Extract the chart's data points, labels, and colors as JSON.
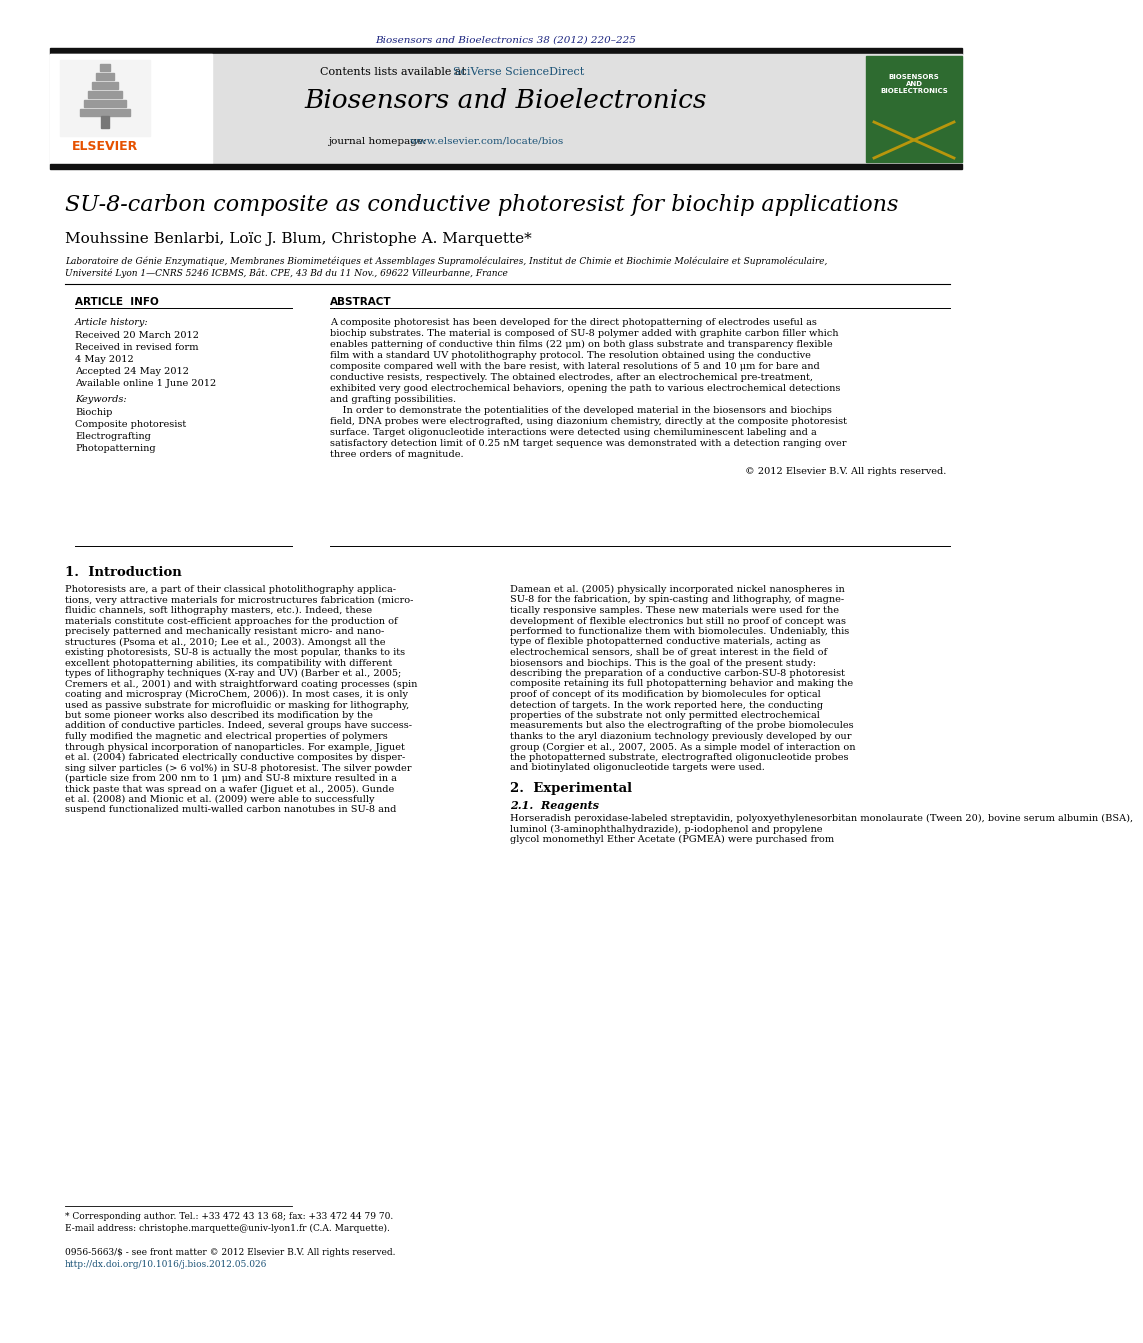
{
  "journal_citation": "Biosensors and Bioelectronics 38 (2012) 220–225",
  "contents_text": "Contents lists available at ",
  "sciverse_text": "SciVerse ScienceDirect",
  "journal_name": "Biosensors and Bioelectronics",
  "homepage_label": "journal homepage: ",
  "homepage_url": "www.elsevier.com/locate/bios",
  "paper_title": "SU-8-carbon composite as conductive photoresist for biochip applications",
  "authors": "Mouhssine Benlarbi, Loïc J. Blum, Christophe A. Marquette*",
  "affiliation_line1": "Laboratoire de Génie Enzymatique, Membranes Biomimetéiques et Assemblages Supramoléculaires, Institut de Chimie et Biochimie Moléculaire et Supramoléculaire,",
  "affiliation_line2": "Université Lyon 1—CNRS 5246 ICBMS, Bât. CPE, 43 Bd du 11 Nov., 69622 Villeurbanne, France",
  "article_info_header": "ARTICLE  INFO",
  "abstract_header": "ABSTRACT",
  "article_history_label": "Article history:",
  "history_items": [
    "Received 20 March 2012",
    "Received in revised form",
    "4 May 2012",
    "Accepted 24 May 2012",
    "Available online 1 June 2012"
  ],
  "keywords_label": "Keywords:",
  "keywords": [
    "Biochip",
    "Composite photoresist",
    "Electrografting",
    "Photopatterning"
  ],
  "abstract_lines": [
    "A composite photoresist has been developed for the direct photopatterning of electrodes useful as",
    "biochip substrates. The material is composed of SU-8 polymer added with graphite carbon filler which",
    "enables patterning of conductive thin films (22 μm) on both glass substrate and transparency flexible",
    "film with a standard UV photolithography protocol. The resolution obtained using the conductive",
    "composite compared well with the bare resist, with lateral resolutions of 5 and 10 μm for bare and",
    "conductive resists, respectively. The obtained electrodes, after an electrochemical pre-treatment,",
    "exhibited very good electrochemical behaviors, opening the path to various electrochemical detections",
    "and grafting possibilities.",
    "    In order to demonstrate the potentialities of the developed material in the biosensors and biochips",
    "field, DNA probes were electrografted, using diazonium chemistry, directly at the composite photoresist",
    "surface. Target oligonucleotide interactions were detected using chemiluminescent labeling and a",
    "satisfactory detection limit of 0.25 nM target sequence was demonstrated with a detection ranging over",
    "three orders of magnitude."
  ],
  "copyright": "© 2012 Elsevier B.V. All rights reserved.",
  "section1_title": "1.  Introduction",
  "intro_col1_lines": [
    "Photoresists are, a part of their classical photolithography applica-",
    "tions, very attractive materials for microstructures fabrication (micro-",
    "fluidic channels, soft lithography masters, etc.). Indeed, these",
    "materials constitute cost-efficient approaches for the production of",
    "precisely patterned and mechanically resistant micro- and nano-",
    "structures (Psoma et al., 2010; Lee et al., 2003). Amongst all the",
    "existing photoresists, SU-8 is actually the most popular, thanks to its",
    "excellent photopatterning abilities, its compatibility with different",
    "types of lithography techniques (X-ray and UV) (Barber et al., 2005;",
    "Cremers et al., 2001) and with straightforward coating processes (spin",
    "coating and microspray (MicroChem, 2006)). In most cases, it is only",
    "used as passive substrate for microfluidic or masking for lithography,",
    "but some pioneer works also described its modification by the",
    "addition of conductive particles. Indeed, several groups have success-",
    "fully modified the magnetic and electrical properties of polymers",
    "through physical incorporation of nanoparticles. For example, Jiguet",
    "et al. (2004) fabricated electrically conductive composites by disper-",
    "sing silver particles (> 6 vol%) in SU-8 photoresist. The silver powder",
    "(particle size from 200 nm to 1 μm) and SU-8 mixture resulted in a",
    "thick paste that was spread on a wafer (Jiguet et al., 2005). Gunde",
    "et al. (2008) and Mionic et al. (2009) were able to successfully",
    "suspend functionalized multi-walled carbon nanotubes in SU-8 and"
  ],
  "intro_col2_lines": [
    "Damean et al. (2005) physically incorporated nickel nanospheres in",
    "SU-8 for the fabrication, by spin-casting and lithography, of magne-",
    "tically responsive samples. These new materials were used for the",
    "development of flexible electronics but still no proof of concept was",
    "performed to functionalize them with biomolecules. Undeniably, this",
    "type of flexible photopatterned conductive materials, acting as",
    "electrochemical sensors, shall be of great interest in the field of",
    "biosensors and biochips. This is the goal of the present study:",
    "describing the preparation of a conductive carbon-SU-8 photoresist",
    "composite retaining its full photopatterning behavior and making the",
    "proof of concept of its modification by biomolecules for optical",
    "detection of targets. In the work reported here, the conducting",
    "properties of the substrate not only permitted electrochemical",
    "measurements but also the electrografting of the probe biomolecules",
    "thanks to the aryl diazonium technology previously developed by our",
    "group (Corgier et al., 2007, 2005. As a simple model of interaction on",
    "the photopatterned substrate, electrografted oligonucleotide probes",
    "and biotinylated oligonucleotide targets were used."
  ],
  "section2_title": "2.  Experimental",
  "section21_title": "2.1.  Reagents",
  "reagents_lines": [
    "Horseradish peroxidase-labeled streptavidin, polyoxyethylenesorbitan monolaurate (Tween 20), bovine serum albumin (BSA),",
    "luminol (3-aminophthalhydrazide), p-iodophenol and propylene",
    "glycol monomethyl Ether Acetate (PGMEA) were purchased from"
  ],
  "footnote_star": "* Corresponding author. Tel.: +33 472 43 13 68; fax: +33 472 44 79 70.",
  "footnote_email": "E-mail address: christophe.marquette@univ-lyon1.fr (C.A. Marquette).",
  "issn_line": "0956-5663/$ - see front matter © 2012 Elsevier B.V. All rights reserved.",
  "doi_line": "http://dx.doi.org/10.1016/j.bios.2012.05.026",
  "bg_color": "#ffffff",
  "header_bg": "#e0e0e0",
  "dark_bar_color": "#111111",
  "journal_citation_color": "#1a237e",
  "link_color": "#1a5276",
  "elsevier_orange": "#e65100",
  "cover_green": "#2e6b30"
}
